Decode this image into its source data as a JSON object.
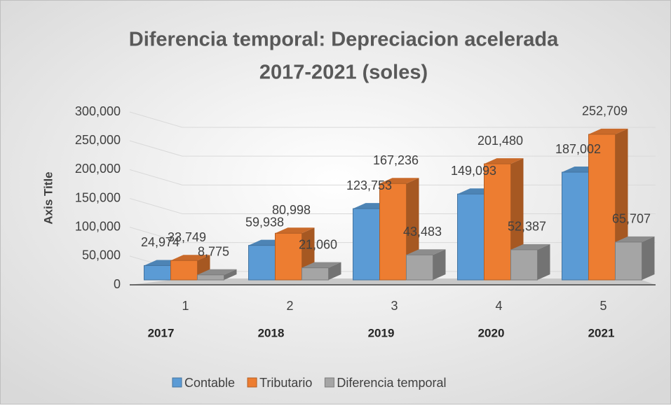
{
  "chart_data": {
    "type": "bar3d",
    "title": [
      "Diferencia temporal: Depreciacion acelerada",
      "2017-2021 (soles)"
    ],
    "y_axis_title": "Axis Title",
    "categories": [
      "1",
      "2",
      "3",
      "4",
      "5"
    ],
    "category_groups": [
      "2017",
      "2018",
      "2019",
      "2020",
      "2021"
    ],
    "series": [
      {
        "name": "Contable",
        "color": "#5b9bd5",
        "values": [
          24974,
          59938,
          123753,
          149093,
          187002
        ],
        "value_labels": [
          "24,974",
          "59,938",
          "123,753",
          "149,093",
          "187,002"
        ]
      },
      {
        "name": "Tributario",
        "color": "#ed7d31",
        "values": [
          33749,
          80998,
          167236,
          201480,
          252709
        ],
        "value_labels": [
          "33,749",
          "80,998",
          "167,236",
          "201,480",
          "252,709"
        ]
      },
      {
        "name": "Diferencia temporal",
        "color": "#a5a5a5",
        "values": [
          8775,
          21060,
          43483,
          52387,
          65707
        ],
        "value_labels": [
          "8,775",
          "21,060",
          "43,483",
          "52,387",
          "65,707"
        ]
      }
    ],
    "ylim": [
      0,
      300000
    ],
    "yticks": [
      0,
      {
        "value": 50000,
        "label": "50,000"
      },
      {
        "value": 100000,
        "label": "100,000"
      },
      {
        "value": 150000,
        "label": "150,000"
      },
      {
        "value": 200000,
        "label": "200,000"
      },
      {
        "value": 250000,
        "label": "250,000"
      },
      {
        "value": 300000,
        "label": "300,000"
      }
    ],
    "grid": true,
    "legend": "bottom"
  }
}
